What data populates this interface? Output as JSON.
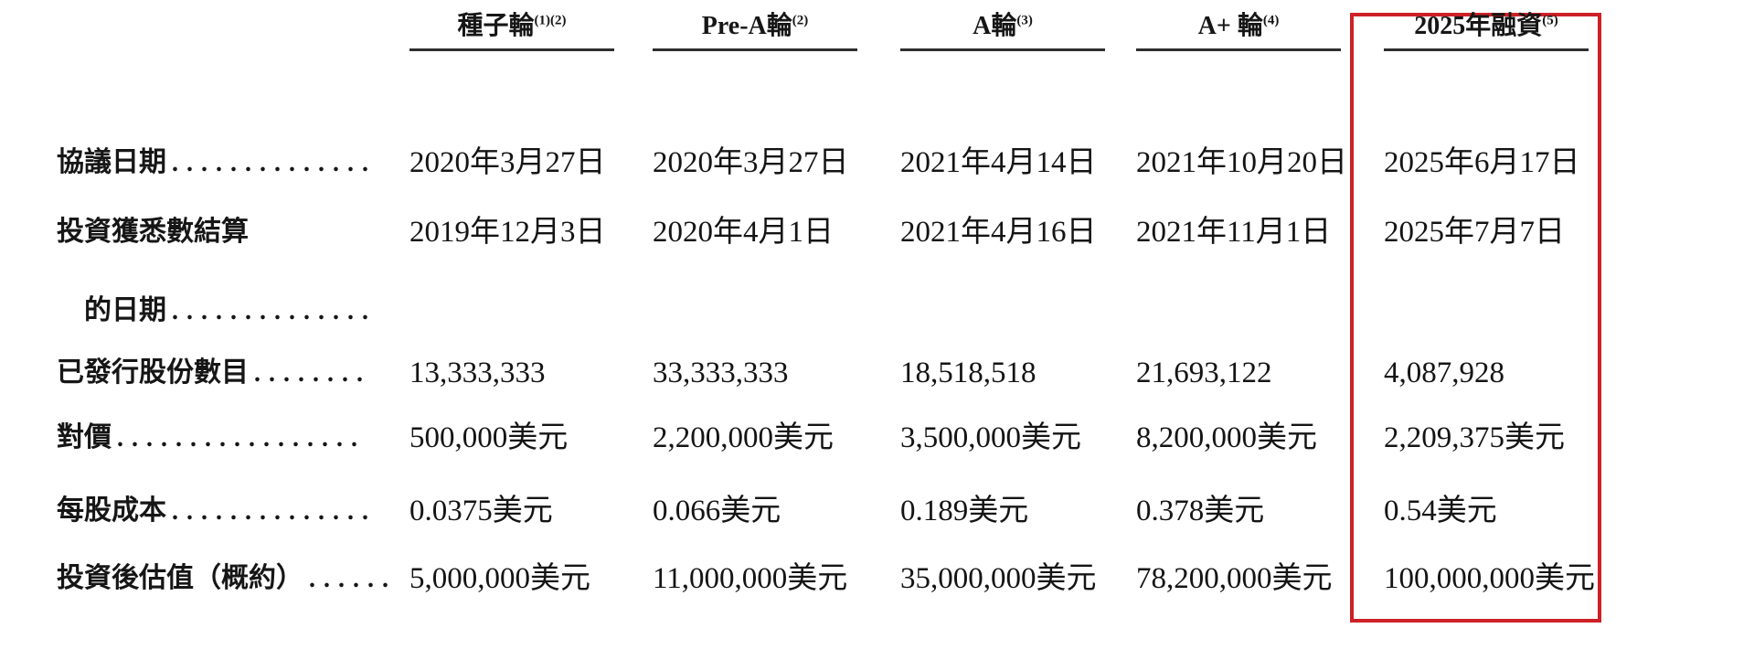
{
  "table": {
    "columns": [
      {
        "label": "種子輪",
        "note": "(1)(2)"
      },
      {
        "label": "Pre-A輪",
        "note": "(2)"
      },
      {
        "label": "A輪",
        "note": "(3)"
      },
      {
        "label": "A+ 輪",
        "note": "(4)"
      },
      {
        "label": "2025年融資",
        "note": "(5)",
        "highlighted": true
      }
    ],
    "rows": [
      {
        "label": "協議日期",
        "dots": "..............",
        "values": [
          "2020年3月27日",
          "2020年3月27日",
          "2021年4月14日",
          "2021年10月20日",
          "2025年6月17日"
        ]
      },
      {
        "label": "投資獲悉數結算",
        "label2": "的日期",
        "dots2": "..............",
        "values": [
          "2019年12月3日",
          "2020年4月1日",
          "2021年4月16日",
          "2021年11月1日",
          "2025年7月7日"
        ]
      },
      {
        "label": "已發行股份數目",
        "dots": "........",
        "values": [
          "13,333,333",
          "33,333,333",
          "18,518,518",
          "21,693,122",
          "4,087,928"
        ]
      },
      {
        "label": "對價",
        "dots": ".................",
        "values": [
          "500,000美元",
          "2,200,000美元",
          "3,500,000美元",
          "8,200,000美元",
          "2,209,375美元"
        ]
      },
      {
        "label": "每股成本",
        "dots": "..............",
        "values": [
          "0.0375美元",
          "0.066美元",
          "0.189美元",
          "0.378美元",
          "0.54美元"
        ]
      },
      {
        "label": "投資後估值（概約）",
        "dots": "......",
        "values": [
          "5,000,000美元",
          "11,000,000美元",
          "35,000,000美元",
          "78,200,000美元",
          "100,000,000美元"
        ]
      }
    ],
    "highlight_color": "#cd2027"
  }
}
